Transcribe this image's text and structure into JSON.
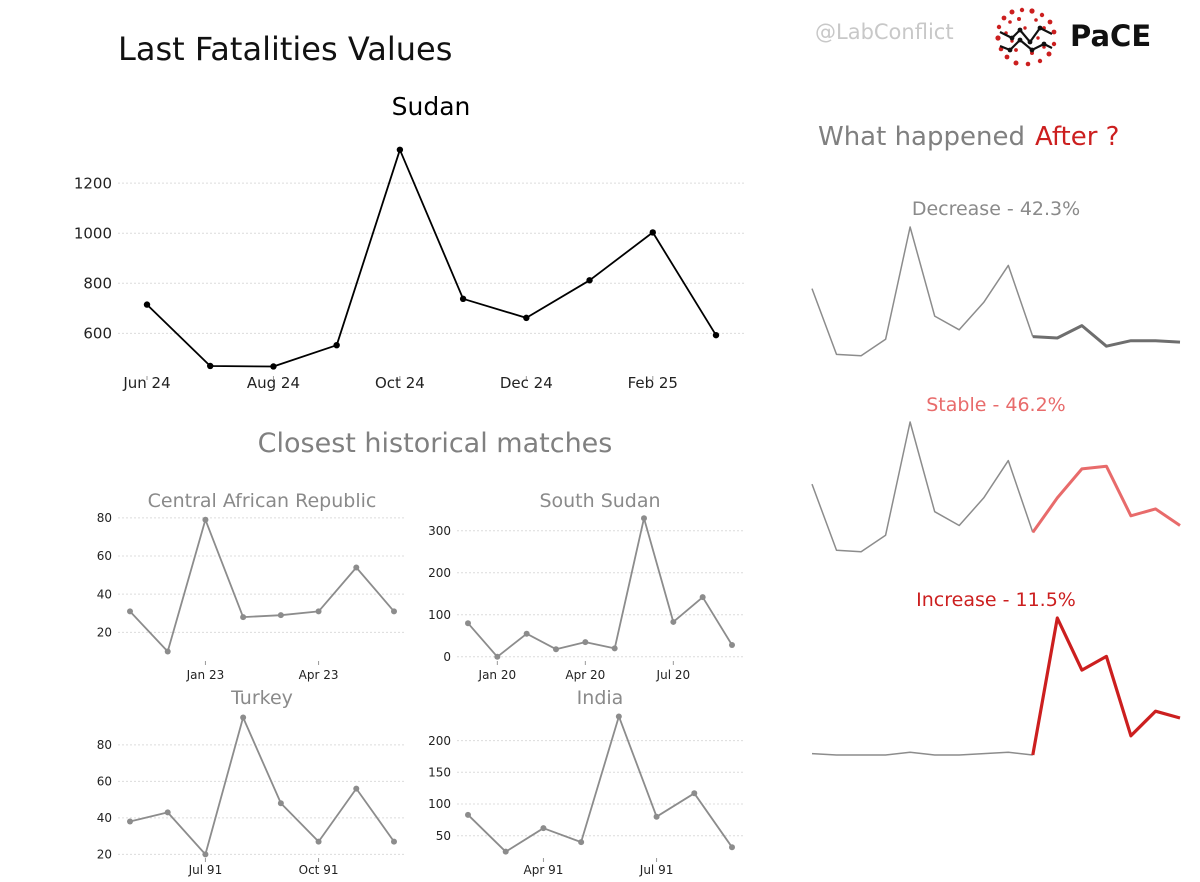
{
  "header": {
    "title": "Last Fatalities Values",
    "handle": "@LabConflict",
    "logo_text": "PaCE"
  },
  "sections": {
    "matches_title": "Closest historical matches",
    "after_title": "What happened",
    "after_highlight": "After ?"
  },
  "colors": {
    "main_line": "#000000",
    "match_line": "#8c8c8c",
    "decrease": "#6e6e6e",
    "stable": "#e86b6b",
    "increase": "#cc1f1f",
    "grid": "#dcdcdc"
  },
  "chart_data": [
    {
      "id": "main",
      "type": "line",
      "title": "Sudan",
      "x": [
        "2024-06",
        "2024-07",
        "2024-08",
        "2024-09",
        "2024-10",
        "2024-11",
        "2024-12",
        "2025-01",
        "2025-02",
        "2025-03"
      ],
      "values": [
        715,
        470,
        468,
        553,
        1333,
        738,
        662,
        812,
        1003,
        593
      ],
      "xticks": [
        {
          "i": 0,
          "label": "Jun 24"
        },
        {
          "i": 2,
          "label": "Aug 24"
        },
        {
          "i": 4,
          "label": "Oct 24"
        },
        {
          "i": 6,
          "label": "Dec 24"
        },
        {
          "i": 8,
          "label": "Feb 25"
        }
      ],
      "yticks": [
        600,
        800,
        1000,
        1200
      ],
      "ylim": [
        430,
        1360
      ],
      "grid": true
    },
    {
      "id": "car",
      "type": "line",
      "title": "Central African Republic",
      "values": [
        31,
        10,
        79,
        28,
        29,
        31,
        54,
        31
      ],
      "xticks": [
        {
          "i": 2,
          "label": "Jan 23"
        },
        {
          "i": 5,
          "label": "Apr 23"
        }
      ],
      "yticks": [
        20,
        40,
        60,
        80
      ],
      "ylim": [
        5,
        82
      ],
      "grid": true
    },
    {
      "id": "south-sudan",
      "type": "line",
      "title": "South Sudan",
      "values": [
        80,
        0,
        55,
        18,
        35,
        20,
        330,
        83,
        142,
        28
      ],
      "xticks": [
        {
          "i": 1,
          "label": "Jan 20"
        },
        {
          "i": 4,
          "label": "Apr 20"
        },
        {
          "i": 7,
          "label": "Jul 20"
        }
      ],
      "yticks": [
        0,
        100,
        200,
        300
      ],
      "ylim": [
        -10,
        340
      ],
      "grid": true
    },
    {
      "id": "turkey",
      "type": "line",
      "title": "Turkey",
      "values": [
        38,
        43,
        20,
        95,
        48,
        27,
        56,
        27
      ],
      "xticks": [
        {
          "i": 2,
          "label": "Jul 91"
        },
        {
          "i": 5,
          "label": "Oct 91"
        }
      ],
      "yticks": [
        20,
        40,
        60,
        80
      ],
      "ylim": [
        18,
        98
      ],
      "grid": true
    },
    {
      "id": "india",
      "type": "line",
      "title": "India",
      "values": [
        83,
        25,
        62,
        40,
        238,
        80,
        117,
        32
      ],
      "xticks": [
        {
          "i": 2,
          "label": "Apr 91"
        },
        {
          "i": 5,
          "label": "Jul 91"
        }
      ],
      "yticks": [
        50,
        100,
        150,
        200
      ],
      "ylim": [
        15,
        245
      ],
      "grid": true
    },
    {
      "id": "decrease",
      "type": "line",
      "title": "Decrease - 42.3%",
      "history": [
        0.55,
        0.07,
        0.06,
        0.18,
        1.0,
        0.35,
        0.25,
        0.45,
        0.72,
        0.2
      ],
      "projection": [
        0.2,
        0.19,
        0.28,
        0.13,
        0.17,
        0.17,
        0.16
      ],
      "grid": false
    },
    {
      "id": "stable",
      "type": "line",
      "title": "Stable - 46.2%",
      "history": [
        0.55,
        0.07,
        0.06,
        0.18,
        1.0,
        0.35,
        0.25,
        0.45,
        0.72,
        0.2
      ],
      "projection": [
        0.2,
        0.45,
        0.66,
        0.68,
        0.32,
        0.37,
        0.25
      ],
      "grid": false
    },
    {
      "id": "increase",
      "type": "line",
      "title": "Increase - 11.5%",
      "history": [
        0.01,
        0.0,
        0.0,
        0.0,
        0.02,
        0.0,
        0.0,
        0.01,
        0.02,
        0.0
      ],
      "projection": [
        0.0,
        1.0,
        0.62,
        0.72,
        0.14,
        0.32,
        0.27
      ],
      "grid": false
    }
  ]
}
